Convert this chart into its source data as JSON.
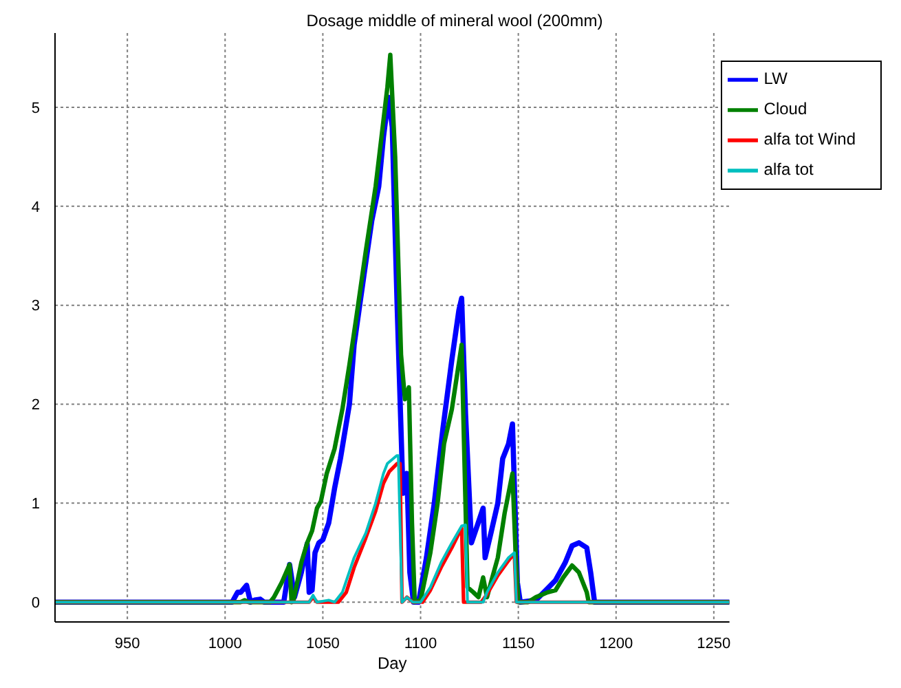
{
  "chart_data": {
    "type": "line",
    "title": "Dosage middle of mineral wool (200mm)",
    "xlabel": "Day",
    "xlim": [
      913,
      1258
    ],
    "ylim": [
      -0.2,
      5.75
    ],
    "xticks": [
      950,
      1000,
      1050,
      1100,
      1150,
      1200,
      1250
    ],
    "yticks": [
      0,
      1,
      2,
      3,
      4,
      5
    ],
    "grid": true,
    "legend": "top right",
    "marker": "none",
    "line_style": "solid",
    "series": [
      {
        "name": "LW",
        "color": "#0000ff",
        "x": [
          913,
          1003.6,
          1006.4,
          1008,
          1011,
          1013,
          1015,
          1018,
          1020,
          1030,
          1033,
          1035.5,
          1039,
          1042,
          1043,
          1044.5,
          1046,
          1048,
          1050,
          1053,
          1056,
          1059,
          1063.6,
          1066,
          1071,
          1075,
          1078.6,
          1081,
          1083.6,
          1085.5,
          1088,
          1091,
          1093,
          1094.5,
          1096.4,
          1099,
          1103,
          1107,
          1111.4,
          1116,
          1119.6,
          1121,
          1123,
          1126,
          1128.6,
          1132,
          1133,
          1136,
          1139.5,
          1142,
          1145,
          1147,
          1149.5,
          1151,
          1159,
          1163,
          1169,
          1174,
          1177.5,
          1181,
          1185,
          1187,
          1189,
          1258
        ],
        "values": [
          0,
          0,
          0.1,
          0.1,
          0.17,
          0,
          0.02,
          0.03,
          0,
          0,
          0.38,
          0.05,
          0.3,
          0.59,
          0.1,
          0.12,
          0.5,
          0.6,
          0.63,
          0.8,
          1.15,
          1.45,
          2.0,
          2.6,
          3.3,
          3.85,
          4.2,
          4.7,
          5.1,
          4.8,
          3.0,
          1.1,
          1.3,
          0.3,
          0,
          0,
          0.45,
          1.0,
          1.75,
          2.45,
          2.95,
          3.07,
          1.9,
          0.6,
          0.75,
          0.95,
          0.45,
          0.7,
          1.0,
          1.45,
          1.6,
          1.8,
          0.2,
          0,
          0.02,
          0.1,
          0.22,
          0.4,
          0.57,
          0.6,
          0.55,
          0.3,
          0,
          0
        ]
      },
      {
        "name": "Cloud",
        "color": "#008000",
        "x": [
          913,
          1008,
          1010,
          1012,
          1023,
          1025,
          1029,
          1033,
          1034,
          1035,
          1039,
          1042,
          1044.5,
          1047,
          1049,
          1052,
          1056,
          1060,
          1063.6,
          1067.3,
          1072,
          1077,
          1080,
          1083,
          1084.5,
          1087,
          1090,
          1092,
          1094,
          1095.6,
          1097,
          1100,
          1105,
          1108.7,
          1112,
          1116,
          1121,
          1124,
          1127,
          1129.6,
          1132,
          1134,
          1136,
          1139.5,
          1143,
          1147,
          1148.6,
          1150,
          1155,
          1159,
          1165,
          1169,
          1173,
          1177.5,
          1181,
          1185,
          1186,
          1258
        ],
        "values": [
          0,
          0,
          0.02,
          0,
          0,
          0.05,
          0.2,
          0.38,
          0,
          0.02,
          0.4,
          0.6,
          0.72,
          0.95,
          1.02,
          1.3,
          1.55,
          1.95,
          2.4,
          2.9,
          3.55,
          4.2,
          4.7,
          5.2,
          5.53,
          4.5,
          2.5,
          2.05,
          2.17,
          0.8,
          0,
          0.02,
          0.5,
          1.0,
          1.6,
          1.95,
          2.6,
          0.15,
          0.1,
          0.05,
          0.25,
          0.05,
          0.2,
          0.45,
          0.9,
          1.3,
          0.5,
          0,
          0,
          0.05,
          0.1,
          0.12,
          0.25,
          0.37,
          0.3,
          0.1,
          0,
          0
        ]
      },
      {
        "name": "alfa tot Wind",
        "color": "#ff0000",
        "x": [
          913,
          1043,
          1045,
          1047,
          1053,
          1058,
          1062,
          1066,
          1072,
          1077,
          1081,
          1084,
          1088,
          1089.5,
          1090.5,
          1093,
          1096,
          1101,
          1105,
          1110.5,
          1116,
          1121,
          1122,
          1131,
          1134,
          1139.5,
          1145,
          1147,
          1148,
          1149,
          1258
        ],
        "values": [
          0,
          0,
          0.05,
          0,
          0,
          0,
          0.1,
          0.35,
          0.65,
          0.92,
          1.2,
          1.32,
          1.4,
          1.4,
          0,
          0.05,
          0,
          0,
          0.12,
          0.35,
          0.55,
          0.75,
          0,
          0,
          0.08,
          0.27,
          0.42,
          0.47,
          0.47,
          0,
          0
        ]
      },
      {
        "name": "alfa tot",
        "color": "#00bfbf",
        "x": [
          913,
          1043,
          1045,
          1047,
          1053,
          1056,
          1060,
          1066,
          1072,
          1077,
          1081,
          1083,
          1087.8,
          1088.6,
          1090.5,
          1093,
          1096,
          1100,
          1105,
          1110.5,
          1116,
          1121,
          1123,
          1124,
          1132,
          1134,
          1139.5,
          1145,
          1148,
          1149,
          1258
        ],
        "values": [
          0,
          0,
          0.07,
          0,
          0.02,
          0,
          0.1,
          0.45,
          0.7,
          1.0,
          1.3,
          1.4,
          1.48,
          1.48,
          0,
          0.05,
          0,
          0,
          0.15,
          0.4,
          0.6,
          0.77,
          0.78,
          0,
          0,
          0.1,
          0.3,
          0.45,
          0.5,
          0,
          0
        ]
      }
    ]
  }
}
